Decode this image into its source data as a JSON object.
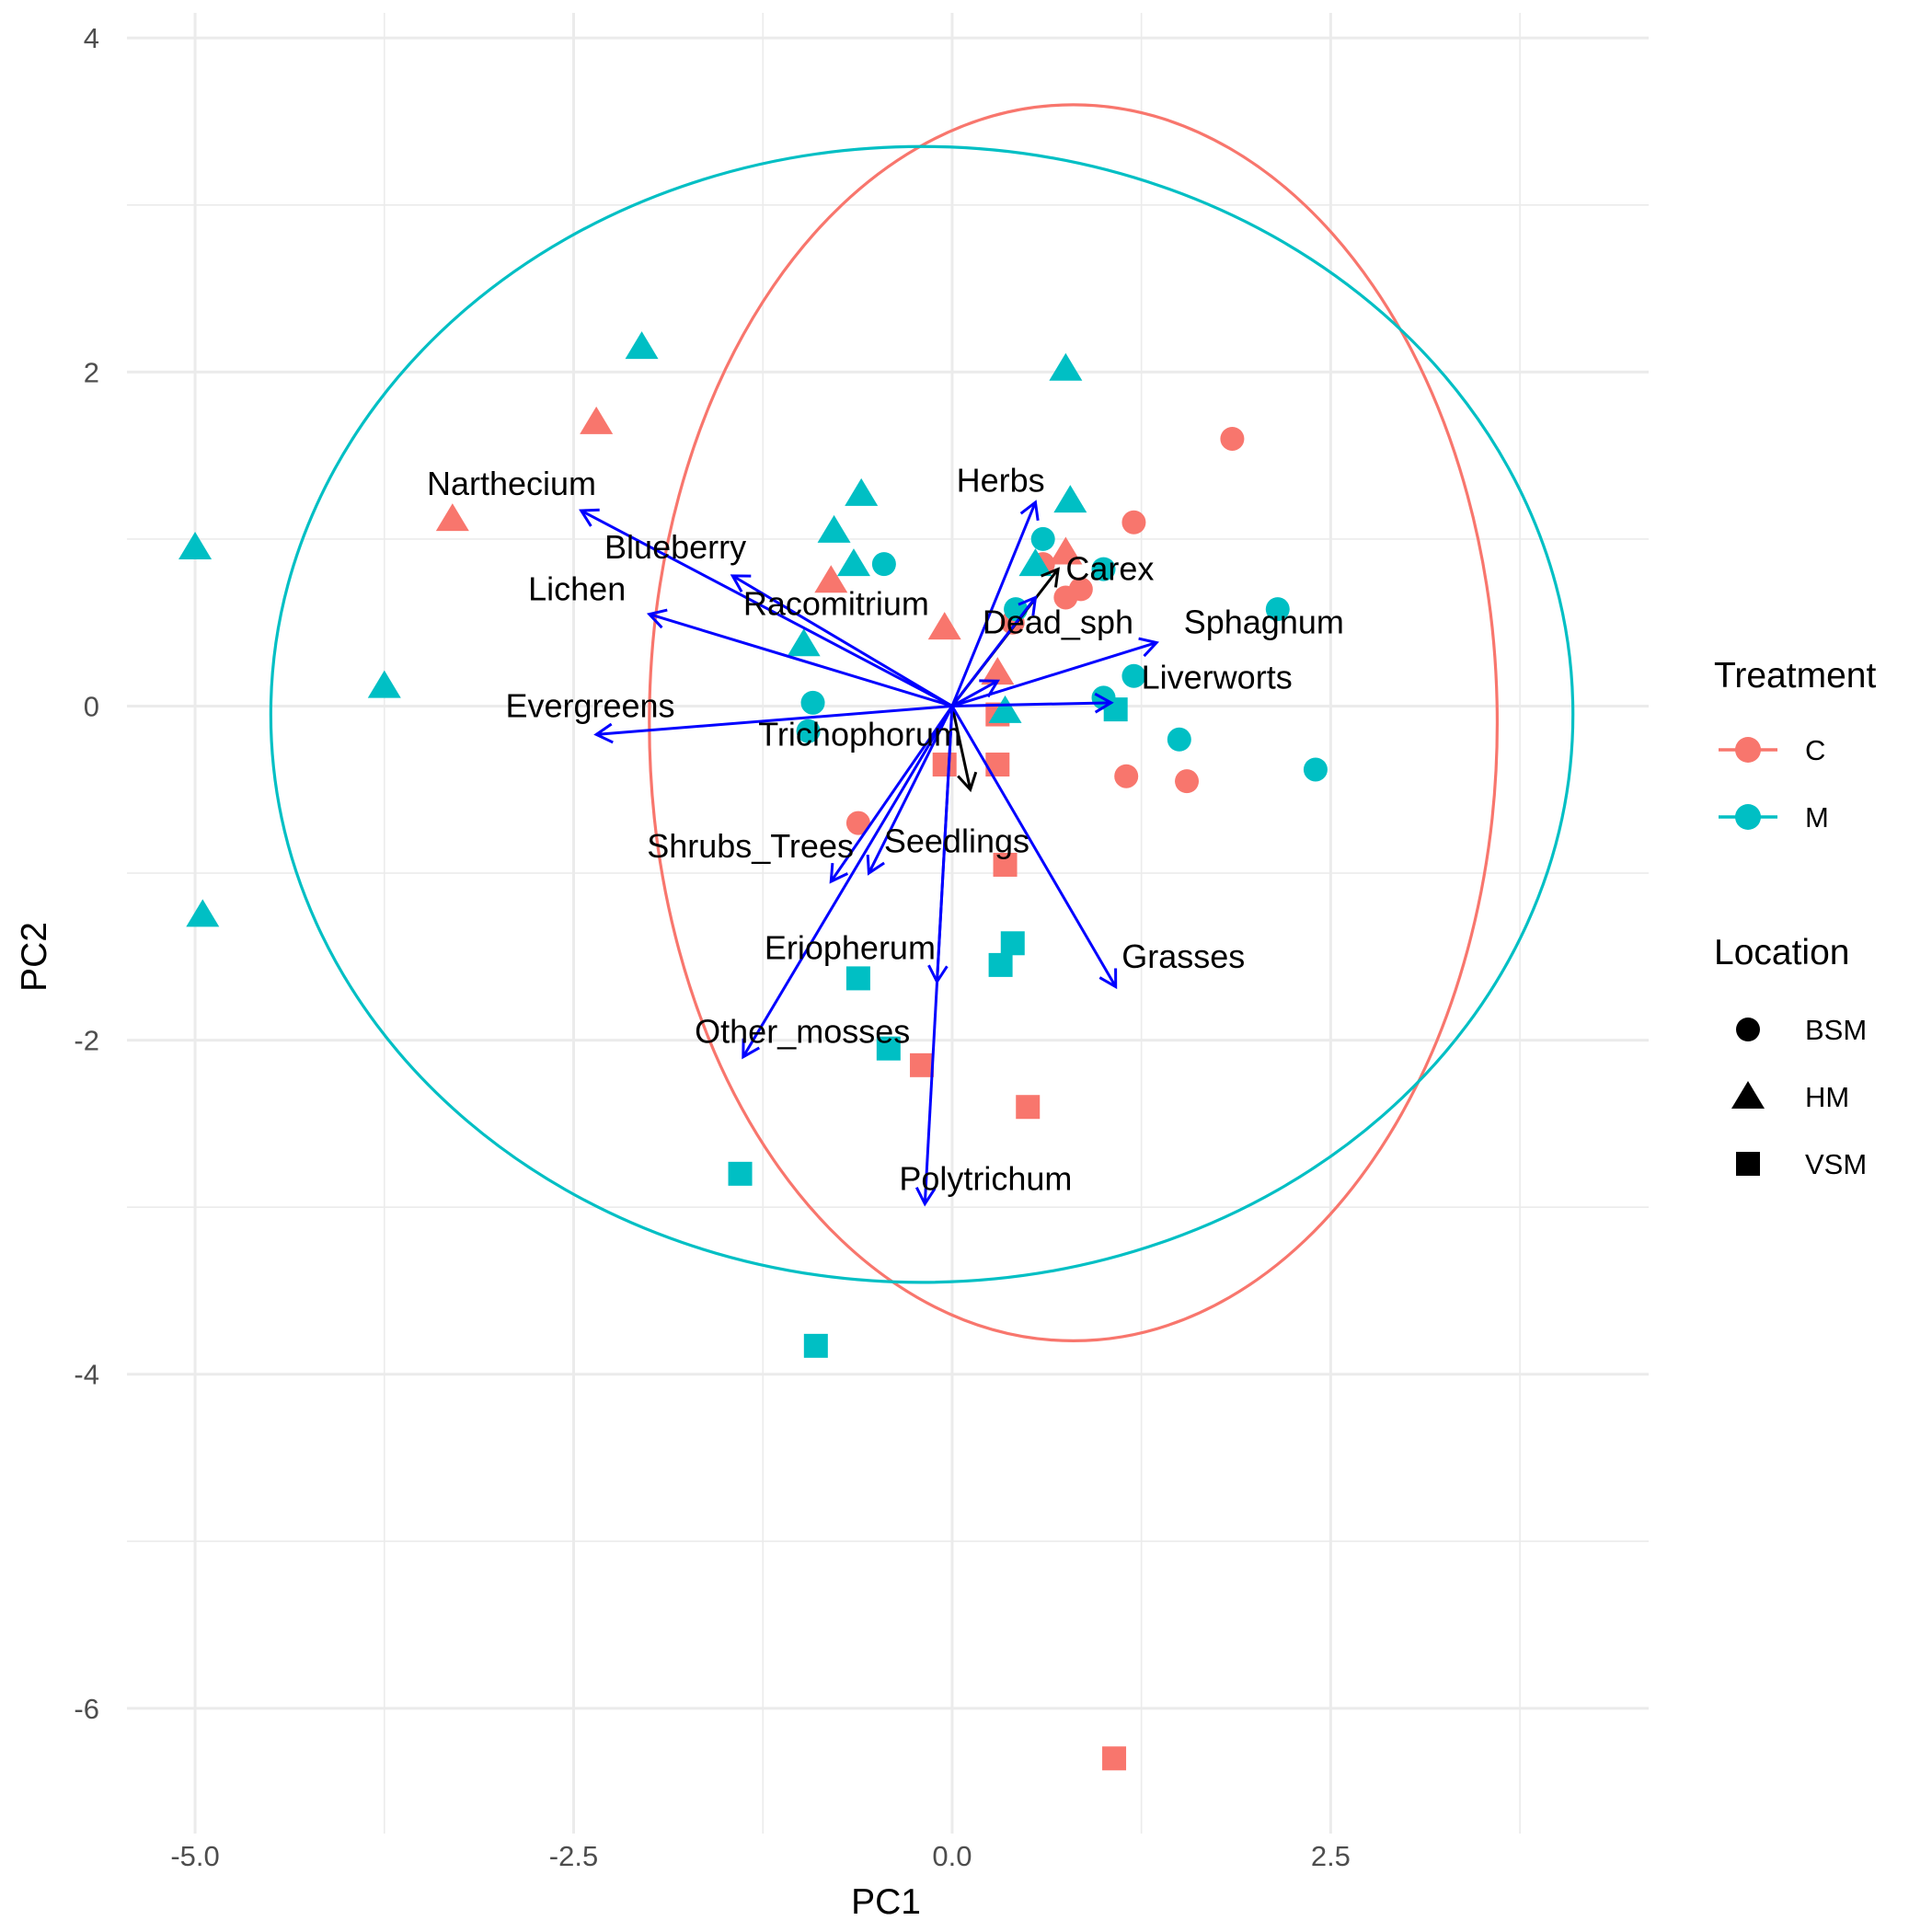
{
  "chart_data": {
    "type": "scatter",
    "subtype": "pca-biplot",
    "xlabel": "PC1",
    "ylabel": "PC2",
    "xlim": [
      -5.45,
      4.6
    ],
    "ylim": [
      -6.75,
      4.15
    ],
    "x_ticks": [
      {
        "value": -5.0,
        "label": "-5.0"
      },
      {
        "value": -2.5,
        "label": "-2.5"
      },
      {
        "value": 0.0,
        "label": "0.0"
      },
      {
        "value": 2.5,
        "label": "2.5"
      }
    ],
    "y_ticks": [
      {
        "value": 4,
        "label": "4"
      },
      {
        "value": 2,
        "label": "2"
      },
      {
        "value": 0,
        "label": "0"
      },
      {
        "value": -2,
        "label": "-2"
      },
      {
        "value": -4,
        "label": "-4"
      },
      {
        "value": -6,
        "label": "-6"
      }
    ],
    "grid": true,
    "legend_position": "right",
    "colors": {
      "C": "#F8766D",
      "M": "#00BFC4",
      "loadings": "#0000FF",
      "minor_loadings": "#000000"
    },
    "legends": {
      "treatment": {
        "title": "Treatment",
        "items": [
          {
            "key": "C",
            "label": "C"
          },
          {
            "key": "M",
            "label": "M"
          }
        ]
      },
      "location": {
        "title": "Location",
        "items": [
          {
            "key": "BSM",
            "label": "BSM",
            "shape": "circle"
          },
          {
            "key": "HM",
            "label": "HM",
            "shape": "triangle"
          },
          {
            "key": "VSM",
            "label": "VSM",
            "shape": "square"
          }
        ]
      }
    },
    "ellipses": [
      {
        "group": "C",
        "center": [
          0.8,
          -0.1
        ],
        "rx": 2.8,
        "ry": 3.7
      },
      {
        "group": "M",
        "center": [
          -0.2,
          -0.05
        ],
        "rx": 4.3,
        "ry": 3.4
      }
    ],
    "points": [
      {
        "pc1": 1.85,
        "pc2": 1.6,
        "treatment": "C",
        "location": "BSM"
      },
      {
        "pc1": 1.2,
        "pc2": 1.1,
        "treatment": "C",
        "location": "BSM"
      },
      {
        "pc1": 0.85,
        "pc2": 0.7,
        "treatment": "C",
        "location": "BSM"
      },
      {
        "pc1": 0.75,
        "pc2": 0.65,
        "treatment": "C",
        "location": "BSM"
      },
      {
        "pc1": 0.6,
        "pc2": 0.85,
        "treatment": "C",
        "location": "BSM"
      },
      {
        "pc1": 0.4,
        "pc2": 0.5,
        "treatment": "C",
        "location": "BSM"
      },
      {
        "pc1": 1.15,
        "pc2": -0.42,
        "treatment": "C",
        "location": "BSM"
      },
      {
        "pc1": 1.55,
        "pc2": -0.45,
        "treatment": "C",
        "location": "BSM"
      },
      {
        "pc1": -0.62,
        "pc2": -0.7,
        "treatment": "C",
        "location": "BSM"
      },
      {
        "pc1": -3.3,
        "pc2": 1.12,
        "treatment": "C",
        "location": "HM"
      },
      {
        "pc1": -2.35,
        "pc2": 1.7,
        "treatment": "C",
        "location": "HM"
      },
      {
        "pc1": -0.8,
        "pc2": 0.75,
        "treatment": "C",
        "location": "HM"
      },
      {
        "pc1": -0.05,
        "pc2": 0.47,
        "treatment": "C",
        "location": "HM"
      },
      {
        "pc1": 0.3,
        "pc2": 0.2,
        "treatment": "C",
        "location": "HM"
      },
      {
        "pc1": 0.75,
        "pc2": 0.92,
        "treatment": "C",
        "location": "HM"
      },
      {
        "pc1": 0.3,
        "pc2": -0.05,
        "treatment": "C",
        "location": "VSM"
      },
      {
        "pc1": 0.3,
        "pc2": -0.35,
        "treatment": "C",
        "location": "VSM"
      },
      {
        "pc1": -0.05,
        "pc2": -0.35,
        "treatment": "C",
        "location": "VSM"
      },
      {
        "pc1": 0.35,
        "pc2": -0.95,
        "treatment": "C",
        "location": "VSM"
      },
      {
        "pc1": -0.2,
        "pc2": -2.15,
        "treatment": "C",
        "location": "VSM"
      },
      {
        "pc1": 0.5,
        "pc2": -2.4,
        "treatment": "C",
        "location": "VSM"
      },
      {
        "pc1": 1.07,
        "pc2": -6.3,
        "treatment": "C",
        "location": "VSM"
      },
      {
        "pc1": -0.45,
        "pc2": 0.85,
        "treatment": "M",
        "location": "BSM"
      },
      {
        "pc1": 0.6,
        "pc2": 1.0,
        "treatment": "M",
        "location": "BSM"
      },
      {
        "pc1": 1.0,
        "pc2": 0.82,
        "treatment": "M",
        "location": "BSM"
      },
      {
        "pc1": 2.15,
        "pc2": 0.58,
        "treatment": "M",
        "location": "BSM"
      },
      {
        "pc1": 1.2,
        "pc2": 0.18,
        "treatment": "M",
        "location": "BSM"
      },
      {
        "pc1": 1.0,
        "pc2": 0.05,
        "treatment": "M",
        "location": "BSM"
      },
      {
        "pc1": 1.5,
        "pc2": -0.2,
        "treatment": "M",
        "location": "BSM"
      },
      {
        "pc1": 2.4,
        "pc2": -0.38,
        "treatment": "M",
        "location": "BSM"
      },
      {
        "pc1": -0.92,
        "pc2": 0.02,
        "treatment": "M",
        "location": "BSM"
      },
      {
        "pc1": -0.95,
        "pc2": -0.15,
        "treatment": "M",
        "location": "BSM"
      },
      {
        "pc1": 0.42,
        "pc2": 0.58,
        "treatment": "M",
        "location": "BSM"
      },
      {
        "pc1": -5.0,
        "pc2": 0.95,
        "treatment": "M",
        "location": "HM"
      },
      {
        "pc1": -4.95,
        "pc2": -1.25,
        "treatment": "M",
        "location": "HM"
      },
      {
        "pc1": -3.75,
        "pc2": 0.12,
        "treatment": "M",
        "location": "HM"
      },
      {
        "pc1": -2.05,
        "pc2": 2.15,
        "treatment": "M",
        "location": "HM"
      },
      {
        "pc1": 0.75,
        "pc2": 2.02,
        "treatment": "M",
        "location": "HM"
      },
      {
        "pc1": -0.6,
        "pc2": 1.27,
        "treatment": "M",
        "location": "HM"
      },
      {
        "pc1": 0.78,
        "pc2": 1.23,
        "treatment": "M",
        "location": "HM"
      },
      {
        "pc1": -0.78,
        "pc2": 1.05,
        "treatment": "M",
        "location": "HM"
      },
      {
        "pc1": -0.65,
        "pc2": 0.85,
        "treatment": "M",
        "location": "HM"
      },
      {
        "pc1": -0.98,
        "pc2": 0.37,
        "treatment": "M",
        "location": "HM"
      },
      {
        "pc1": 0.55,
        "pc2": 0.85,
        "treatment": "M",
        "location": "HM"
      },
      {
        "pc1": 0.35,
        "pc2": -0.03,
        "treatment": "M",
        "location": "HM"
      },
      {
        "pc1": 1.08,
        "pc2": -0.02,
        "treatment": "M",
        "location": "VSM"
      },
      {
        "pc1": 0.4,
        "pc2": -1.42,
        "treatment": "M",
        "location": "VSM"
      },
      {
        "pc1": 0.32,
        "pc2": -1.55,
        "treatment": "M",
        "location": "VSM"
      },
      {
        "pc1": -0.62,
        "pc2": -1.63,
        "treatment": "M",
        "location": "VSM"
      },
      {
        "pc1": -0.42,
        "pc2": -2.05,
        "treatment": "M",
        "location": "VSM"
      },
      {
        "pc1": -1.4,
        "pc2": -2.8,
        "treatment": "M",
        "location": "VSM"
      },
      {
        "pc1": -0.9,
        "pc2": -3.83,
        "treatment": "M",
        "location": "VSM"
      }
    ],
    "loadings": [
      {
        "name": "Narthecium",
        "pc1": -2.45,
        "pc2": 1.17,
        "label_pc1": -2.91,
        "label_pc2": 1.33,
        "anchor": "middle",
        "color": "#0000FF"
      },
      {
        "name": "Blueberry",
        "pc1": -1.45,
        "pc2": 0.78,
        "label_pc1": -1.36,
        "label_pc2": 0.95,
        "anchor": "end",
        "color": "#0000FF"
      },
      {
        "name": "Lichen",
        "pc1": -2.0,
        "pc2": 0.55,
        "label_pc1": -2.8,
        "label_pc2": 0.7,
        "anchor": "start",
        "color": "#0000FF"
      },
      {
        "name": "Racomitrium",
        "pc1": 0.3,
        "pc2": 0.15,
        "label_pc1": -1.38,
        "label_pc2": 0.61,
        "anchor": "start",
        "color": "#0000FF"
      },
      {
        "name": "Evergreens",
        "pc1": -2.35,
        "pc2": -0.17,
        "label_pc1": -2.95,
        "label_pc2": 0.0,
        "anchor": "start",
        "color": "#0000FF"
      },
      {
        "name": "Trichophorum",
        "pc1": 0.12,
        "pc2": -0.5,
        "label_pc1": -1.28,
        "label_pc2": -0.17,
        "anchor": "start",
        "color": "#000000"
      },
      {
        "name": "Herbs",
        "pc1": 0.55,
        "pc2": 1.22,
        "label_pc1": 0.32,
        "label_pc2": 1.35,
        "anchor": "middle",
        "color": "#0000FF"
      },
      {
        "name": "Carex",
        "pc1": 0.7,
        "pc2": 0.82,
        "label_pc1": 0.75,
        "label_pc2": 0.82,
        "anchor": "start",
        "color": "#000000"
      },
      {
        "name": "Dead_sph",
        "pc1": 0.55,
        "pc2": 0.65,
        "label_pc1": 0.2,
        "label_pc2": 0.5,
        "anchor": "start",
        "color": "#0000FF"
      },
      {
        "name": "Sphagnum",
        "pc1": 1.35,
        "pc2": 0.38,
        "label_pc1": 1.53,
        "label_pc2": 0.5,
        "anchor": "start",
        "color": "#0000FF"
      },
      {
        "name": "Liverworts",
        "pc1": 1.05,
        "pc2": 0.02,
        "label_pc1": 1.25,
        "label_pc2": 0.17,
        "anchor": "start",
        "color": "#0000FF"
      },
      {
        "name": "Shrubs_Trees",
        "pc1": -0.8,
        "pc2": -1.05,
        "label_pc1": -0.65,
        "label_pc2": -0.84,
        "anchor": "end",
        "color": "#0000FF"
      },
      {
        "name": "Seedlings",
        "pc1": -0.55,
        "pc2": -1.0,
        "label_pc1": -0.45,
        "label_pc2": -0.81,
        "anchor": "start",
        "color": "#0000FF"
      },
      {
        "name": "Eriopherum",
        "pc1": -0.1,
        "pc2": -1.65,
        "label_pc1": -1.24,
        "label_pc2": -1.45,
        "anchor": "start",
        "color": "#0000FF"
      },
      {
        "name": "Grasses",
        "pc1": 1.08,
        "pc2": -1.68,
        "label_pc1": 1.12,
        "label_pc2": -1.5,
        "anchor": "start",
        "color": "#0000FF"
      },
      {
        "name": "Other_mosses",
        "pc1": -1.38,
        "pc2": -2.1,
        "label_pc1": -1.7,
        "label_pc2": -1.95,
        "anchor": "start",
        "color": "#0000FF"
      },
      {
        "name": "Polytrichum",
        "pc1": -0.18,
        "pc2": -2.98,
        "label_pc1": -0.35,
        "label_pc2": -2.83,
        "anchor": "start",
        "color": "#0000FF"
      }
    ]
  }
}
